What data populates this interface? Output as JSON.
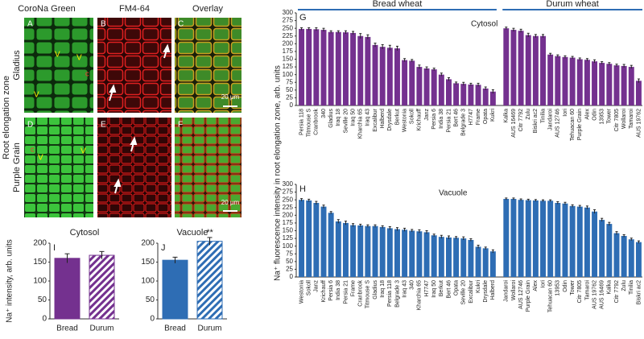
{
  "figure": {
    "side_label": "Root elongation zone",
    "columns": [
      "CoroNa Green",
      "FM4-64",
      "Overlay"
    ],
    "rows": [
      "Gladius",
      "Purple Grain"
    ],
    "panels": [
      "A",
      "B",
      "C",
      "D",
      "E",
      "F"
    ],
    "scale_bars": [
      "20 µm",
      "20 µm"
    ],
    "vacuole_marks": [
      "V",
      "V",
      "V",
      "V",
      "V"
    ],
    "cytosol_marks": [
      "c",
      "c"
    ]
  },
  "shared_ylabel": "Na⁺ fluorescence intensity in root elongation zone, arb. units",
  "chart_data": [
    {
      "type": "bar",
      "label": "G",
      "subtitle": "Cytosol",
      "color": "#74318f",
      "ylim": [
        0,
        300
      ],
      "yticks": [
        0,
        25,
        50,
        75,
        100,
        125,
        150,
        175,
        200,
        225,
        250,
        275,
        300
      ],
      "groups": [
        {
          "name": "Bread wheat",
          "categories": [
            "Persia 118",
            "Titmouse S",
            "Cranbrook",
            "340",
            "Gladius",
            "Iraq 18",
            "Seville 20",
            "Iraq 50",
            "Kharchia 65",
            "Iraq 43",
            "Excalibur",
            "Halberd",
            "Drysdale",
            "Berkut",
            "Westonia",
            "Sokoll",
            "Krichauff",
            "Janz",
            "Persia 6",
            "India 38",
            "Persia 21",
            "Bert 46",
            "Belgrade 3",
            "H7747",
            "Frame",
            "Opata",
            "Kukri"
          ],
          "values": [
            248,
            248,
            247,
            245,
            238,
            238,
            237,
            235,
            225,
            222,
            196,
            190,
            187,
            185,
            147,
            145,
            125,
            120,
            117,
            100,
            85,
            72,
            70,
            68,
            67,
            55,
            45
          ],
          "errors": [
            4,
            4,
            5,
            5,
            4,
            4,
            5,
            5,
            8,
            7,
            6,
            7,
            8,
            7,
            5,
            4,
            6,
            5,
            4,
            5,
            5,
            4,
            5,
            4,
            5,
            5,
            6
          ]
        },
        {
          "name": "Durum wheat",
          "categories": [
            "Kalka",
            "AUS 16469",
            "Citr 7792",
            "Zulu",
            "Biskri ac2",
            "Tinilia",
            "Jandaroi",
            "AUS 12746",
            "Iori",
            "Tehuacan 60",
            "Purple Grain",
            "Alex",
            "Odin",
            "13953",
            "Tower",
            "Citr 7805",
            "Wollaroi",
            "Tamaroi",
            "AUS 19762"
          ],
          "values": [
            250,
            245,
            242,
            228,
            225,
            225,
            165,
            160,
            157,
            155,
            150,
            148,
            143,
            138,
            135,
            130,
            128,
            125,
            80
          ],
          "errors": [
            4,
            5,
            5,
            6,
            5,
            5,
            4,
            4,
            4,
            4,
            4,
            4,
            5,
            4,
            4,
            4,
            5,
            5,
            6
          ]
        }
      ]
    },
    {
      "type": "bar",
      "label": "H",
      "subtitle": "Vacuole",
      "color": "#2e6db4",
      "ylim": [
        0,
        300
      ],
      "yticks": [
        0,
        25,
        50,
        75,
        100,
        125,
        150,
        175,
        200,
        225,
        250,
        275,
        300
      ],
      "groups": [
        {
          "categories": [
            "Westonia",
            "Sokoll",
            "Janz",
            "Krichauff",
            "Persia 6",
            "India 38",
            "Persia 21",
            "Frame",
            "Cranbrook",
            "Titmouse S",
            "Gladius",
            "Iraq 18",
            "Persia 118",
            "Belgrade 3",
            "Iraq 43",
            "340",
            "Kharchia 65",
            "H7747",
            "Iraq 50",
            "Berkut",
            "Bert 46",
            "Opata",
            "Seville 20",
            "Excalibur",
            "Kukri",
            "Drysdale",
            "Halberd"
          ],
          "values": [
            250,
            248,
            240,
            228,
            208,
            180,
            175,
            168,
            167,
            165,
            165,
            162,
            158,
            155,
            153,
            150,
            148,
            145,
            135,
            130,
            128,
            127,
            125,
            120,
            98,
            93,
            83
          ],
          "errors": [
            4,
            4,
            5,
            5,
            4,
            6,
            6,
            5,
            4,
            4,
            4,
            4,
            5,
            5,
            5,
            4,
            5,
            5,
            4,
            5,
            5,
            4,
            5,
            4,
            5,
            4,
            5
          ]
        },
        {
          "categories": [
            "Jandaroi",
            "Wollaroi",
            "AUS 12746",
            "Purple Grain",
            "Alex",
            "Iori",
            "Tehuacan 60",
            "13953",
            "Odin",
            "Tower",
            "Citr 7805",
            "Tamaroi",
            "AUS 19762",
            "AUS 16469",
            "Kalka",
            "Citr 7792",
            "Zulu",
            "Tinilia",
            "Biskri ac2"
          ],
          "values": [
            253,
            253,
            250,
            249,
            248,
            247,
            247,
            240,
            238,
            230,
            228,
            225,
            212,
            185,
            172,
            142,
            133,
            122,
            113
          ],
          "errors": [
            3,
            3,
            3,
            3,
            3,
            3,
            3,
            4,
            4,
            4,
            4,
            5,
            6,
            5,
            5,
            5,
            4,
            4,
            4
          ]
        }
      ]
    },
    {
      "type": "bar",
      "label": "I",
      "title": "Cytosol",
      "ylabel": "Na⁺ intensity, arb. units",
      "color": "#74318f",
      "categories": [
        "Bread",
        "Durum"
      ],
      "values": [
        160,
        168
      ],
      "errors": [
        12,
        10
      ],
      "hatch": [
        false,
        true
      ],
      "ylim": [
        0,
        200
      ],
      "yticks": [
        0,
        50,
        100,
        150,
        200
      ]
    },
    {
      "type": "bar",
      "label": "J",
      "title": "Vacuole",
      "color": "#2e6db4",
      "categories": [
        "Bread",
        "Durum"
      ],
      "values": [
        155,
        205
      ],
      "errors": [
        8,
        10
      ],
      "hatch": [
        false,
        true
      ],
      "annotation": "**",
      "ylim": [
        0,
        200
      ],
      "yticks": [
        0,
        50,
        100,
        150,
        200
      ]
    }
  ]
}
